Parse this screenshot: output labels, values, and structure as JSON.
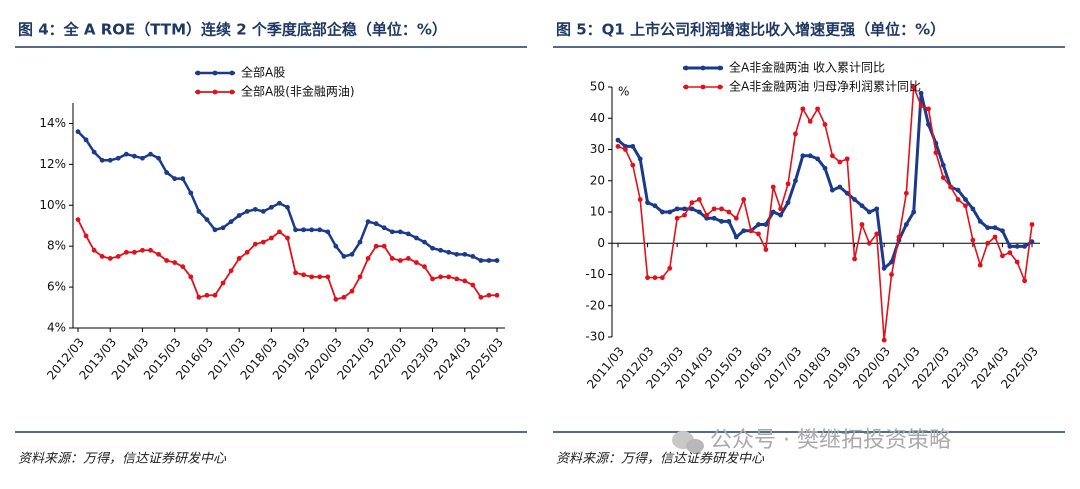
{
  "chart_data": [
    {
      "type": "line",
      "title": "图 4：全 A ROE（TTM）连续 2 个季度底部企稳（单位：%）",
      "source": "资料来源：万得，信达证券研发中心",
      "categories": [
        "2012/03",
        null,
        null,
        null,
        "2013/03",
        null,
        null,
        null,
        "2014/03",
        null,
        null,
        null,
        "2015/03",
        null,
        null,
        null,
        "2016/03",
        null,
        null,
        null,
        "2017/03",
        null,
        null,
        null,
        "2018/03",
        null,
        null,
        null,
        "2019/03",
        null,
        null,
        null,
        "2020/03",
        null,
        null,
        null,
        "2021/03",
        null,
        null,
        null,
        "2022/03",
        null,
        null,
        null,
        "2023/03",
        null,
        null,
        null,
        "2024/03",
        null,
        null,
        null,
        "2025/03"
      ],
      "series": [
        {
          "name": "全部A股",
          "color": "#1b3a8c",
          "values": [
            13.6,
            13.2,
            12.6,
            12.2,
            12.2,
            12.3,
            12.5,
            12.4,
            12.3,
            12.5,
            12.3,
            11.6,
            11.3,
            11.3,
            10.6,
            9.7,
            9.3,
            8.8,
            8.9,
            9.2,
            9.5,
            9.7,
            9.8,
            9.7,
            9.9,
            10.1,
            9.9,
            8.8,
            8.8,
            8.8,
            8.8,
            8.7,
            8.0,
            7.5,
            7.6,
            8.2,
            9.2,
            9.1,
            8.9,
            8.7,
            8.7,
            8.6,
            8.4,
            8.2,
            7.9,
            7.8,
            7.7,
            7.6,
            7.6,
            7.5,
            7.3,
            7.3,
            7.3
          ]
        },
        {
          "name": "全部A股(非金融两油)",
          "color": "#e3101c",
          "values": [
            9.3,
            8.5,
            7.8,
            7.5,
            7.4,
            7.5,
            7.7,
            7.7,
            7.8,
            7.8,
            7.6,
            7.3,
            7.2,
            7.0,
            6.5,
            5.5,
            5.6,
            5.6,
            6.2,
            6.8,
            7.4,
            7.7,
            8.1,
            8.2,
            8.4,
            8.7,
            8.4,
            6.7,
            6.6,
            6.5,
            6.5,
            6.5,
            5.4,
            5.5,
            5.8,
            6.5,
            7.4,
            8.0,
            8.0,
            7.4,
            7.3,
            7.4,
            7.2,
            7.0,
            6.4,
            6.5,
            6.5,
            6.4,
            6.3,
            6.1,
            5.5,
            5.6,
            5.6
          ]
        }
      ],
      "ylim": [
        4,
        15
      ],
      "yticks": [
        {
          "value": 4,
          "label": "4%"
        },
        {
          "value": 6,
          "label": "6%"
        },
        {
          "value": 8,
          "label": "8%"
        },
        {
          "value": 10,
          "label": "10%"
        },
        {
          "value": 12,
          "label": "12%"
        },
        {
          "value": 14,
          "label": "14%"
        }
      ],
      "grid": false
    },
    {
      "type": "line",
      "title": "图 5：Q1 上市公司利润增速比收入增速更强（单位：%）",
      "source": "资料来源：万得，信达证券研发中心",
      "unit_label": "%",
      "categories": [
        "2011/03",
        null,
        null,
        null,
        "2012/03",
        null,
        null,
        null,
        "2013/03",
        null,
        null,
        null,
        "2014/03",
        null,
        null,
        null,
        "2015/03",
        null,
        null,
        null,
        "2016/03",
        null,
        null,
        null,
        "2017/03",
        null,
        null,
        null,
        "2018/03",
        null,
        null,
        null,
        "2019/03",
        null,
        null,
        null,
        "2020/03",
        null,
        null,
        null,
        "2021/03",
        null,
        null,
        null,
        "2022/03",
        null,
        null,
        null,
        "2023/03",
        null,
        null,
        null,
        "2024/03",
        null,
        null,
        null,
        "2025/03"
      ],
      "series": [
        {
          "name": "全A非金融两油 收入累计同比",
          "color": "#1b3a8c",
          "values": [
            33,
            31,
            31,
            27,
            13,
            12,
            10,
            10,
            11,
            11,
            11,
            10,
            8,
            8,
            7,
            7,
            2,
            4,
            4,
            6,
            6,
            10,
            9,
            13,
            20,
            28,
            28,
            27,
            24,
            17,
            18,
            16,
            14,
            12,
            10,
            11,
            -8,
            -6,
            1,
            6,
            10,
            48,
            38,
            32,
            25,
            18,
            17,
            14,
            11,
            7,
            5,
            5,
            4,
            -1,
            -1,
            -1,
            0.5
          ]
        },
        {
          "name": "全A非金融两油 归母净利润累计同比",
          "color": "#e3101c",
          "values": [
            31,
            30,
            25,
            14,
            -11,
            -11,
            -11,
            -8,
            8,
            9,
            13,
            14,
            9,
            11,
            11,
            10,
            8,
            14,
            4,
            3,
            -2,
            18,
            11,
            19,
            35,
            43,
            39,
            43,
            38,
            28,
            26,
            27,
            -5,
            6,
            0,
            3,
            -31,
            -10,
            2,
            16,
            50,
            44,
            43,
            29,
            21,
            18,
            14,
            12,
            1,
            -7,
            0,
            2,
            -4,
            -3,
            -6,
            -12,
            6
          ]
        }
      ],
      "ylim": [
        -30,
        50
      ],
      "yticks": [
        -30,
        -20,
        -10,
        0,
        10,
        20,
        30,
        40,
        50
      ],
      "grid": false
    }
  ],
  "watermark": "公众号 · 樊继拓投资策略"
}
